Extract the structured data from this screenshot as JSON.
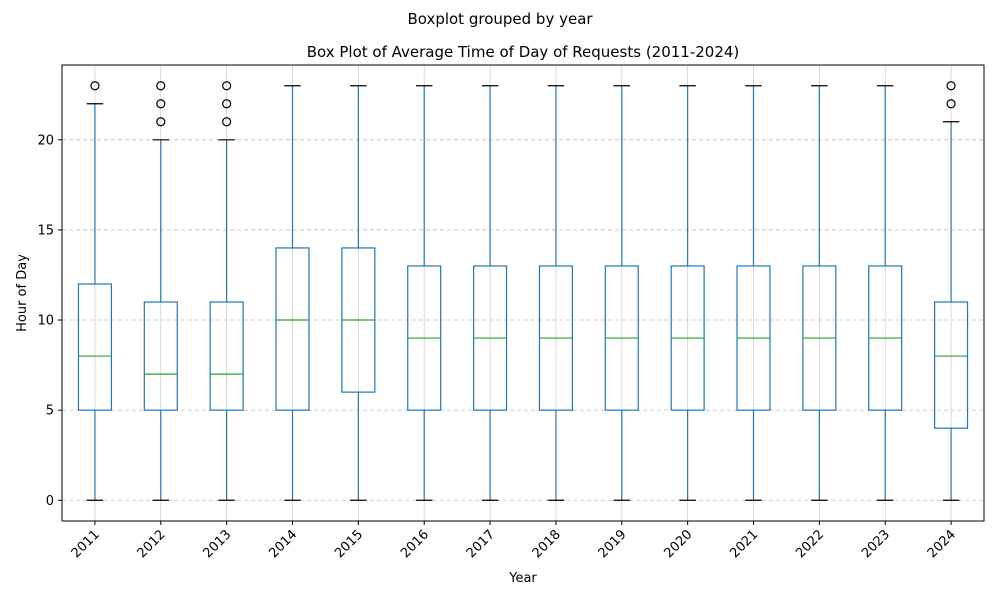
{
  "chart_data": {
    "type": "boxplot",
    "suptitle": "Boxplot grouped by year",
    "title": "Box Plot of Average Time of Day of Requests (2011-2024)",
    "xlabel": "Year",
    "ylabel": "Hour of Day",
    "ylim": [
      -1.15,
      24.15
    ],
    "yticks": [
      0,
      5,
      10,
      15,
      20
    ],
    "grid": true,
    "colors": {
      "box": "#1f77b4",
      "median": "#2ca02c",
      "cap": "#000000",
      "outlier": "#000000",
      "grid": "#b0b0b0"
    },
    "categories": [
      "2011",
      "2012",
      "2013",
      "2014",
      "2015",
      "2016",
      "2017",
      "2018",
      "2019",
      "2020",
      "2021",
      "2022",
      "2023",
      "2024"
    ],
    "boxes": [
      {
        "q1": 5,
        "median": 8,
        "q3": 12,
        "whisker_low": 0,
        "whisker_high": 22,
        "outliers": [
          23
        ]
      },
      {
        "q1": 5,
        "median": 7,
        "q3": 11,
        "whisker_low": 0,
        "whisker_high": 20,
        "outliers": [
          21,
          22,
          23
        ]
      },
      {
        "q1": 5,
        "median": 7,
        "q3": 11,
        "whisker_low": 0,
        "whisker_high": 20,
        "outliers": [
          21,
          22,
          23
        ]
      },
      {
        "q1": 5,
        "median": 10,
        "q3": 14,
        "whisker_low": 0,
        "whisker_high": 23,
        "outliers": []
      },
      {
        "q1": 6,
        "median": 10,
        "q3": 14,
        "whisker_low": 0,
        "whisker_high": 23,
        "outliers": []
      },
      {
        "q1": 5,
        "median": 9,
        "q3": 13,
        "whisker_low": 0,
        "whisker_high": 23,
        "outliers": []
      },
      {
        "q1": 5,
        "median": 9,
        "q3": 13,
        "whisker_low": 0,
        "whisker_high": 23,
        "outliers": []
      },
      {
        "q1": 5,
        "median": 9,
        "q3": 13,
        "whisker_low": 0,
        "whisker_high": 23,
        "outliers": []
      },
      {
        "q1": 5,
        "median": 9,
        "q3": 13,
        "whisker_low": 0,
        "whisker_high": 23,
        "outliers": []
      },
      {
        "q1": 5,
        "median": 9,
        "q3": 13,
        "whisker_low": 0,
        "whisker_high": 23,
        "outliers": []
      },
      {
        "q1": 5,
        "median": 9,
        "q3": 13,
        "whisker_low": 0,
        "whisker_high": 23,
        "outliers": []
      },
      {
        "q1": 5,
        "median": 9,
        "q3": 13,
        "whisker_low": 0,
        "whisker_high": 23,
        "outliers": []
      },
      {
        "q1": 5,
        "median": 9,
        "q3": 13,
        "whisker_low": 0,
        "whisker_high": 23,
        "outliers": []
      },
      {
        "q1": 4,
        "median": 8,
        "q3": 11,
        "whisker_low": 0,
        "whisker_high": 21,
        "outliers": [
          22,
          23
        ]
      }
    ]
  }
}
